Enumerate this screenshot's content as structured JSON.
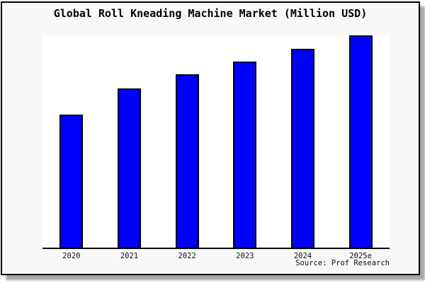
{
  "frame": {
    "title": "Global Roll Kneading Machine Market (Million USD)",
    "source_label": "Source: Prof Research"
  },
  "chart_data": {
    "type": "bar",
    "title": "Global Roll Kneading Machine Market (Million USD)",
    "categories": [
      "2020",
      "2021",
      "2022",
      "2023",
      "2024",
      "2025e"
    ],
    "values": [
      62.7,
      75.0,
      81.7,
      87.7,
      93.8,
      100.0
    ],
    "value_scale_note": "y-axis has no ticks or labels; values are relative bar heights with tallest bar (2025e) = 100",
    "xlabel": "",
    "ylabel": "",
    "ylim": [
      0,
      100
    ],
    "grid": false,
    "legend": null,
    "source": "Source: Prof Research",
    "bar_color": "#0000ff",
    "bar_border_color": "#000000",
    "plot_background": "#ffffff",
    "figure_background": "#f8f8f8",
    "axis_line_color": "#000000"
  }
}
